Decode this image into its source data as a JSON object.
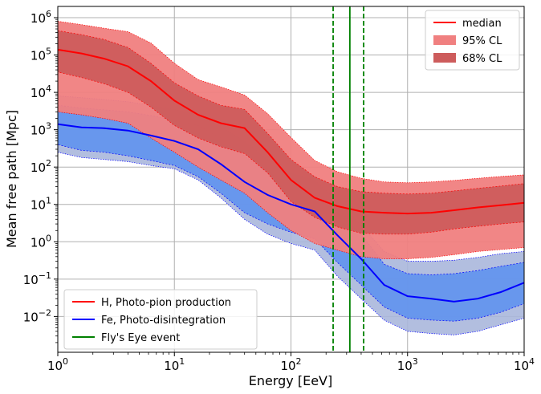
{
  "chart_data": {
    "type": "line",
    "title": "",
    "xlabel": "Energy [EeV]",
    "ylabel": "Mean free path [Mpc]",
    "xscale": "log",
    "yscale": "log",
    "xlim": [
      1,
      10000
    ],
    "ylim": [
      0.0011,
      2000000
    ],
    "grid": true,
    "x_ticks": [
      {
        "value": 1,
        "base": "10",
        "exp": "0"
      },
      {
        "value": 10,
        "base": "10",
        "exp": "1"
      },
      {
        "value": 100,
        "base": "10",
        "exp": "2"
      },
      {
        "value": 1000,
        "base": "10",
        "exp": "3"
      },
      {
        "value": 10000,
        "base": "10",
        "exp": "4"
      }
    ],
    "y_ticks": [
      {
        "value": 0.01,
        "base": "10",
        "exp": "−2"
      },
      {
        "value": 0.1,
        "base": "10",
        "exp": "−1"
      },
      {
        "value": 1,
        "base": "10",
        "exp": "0",
        "plain": "10",
        "plain_sup": "0"
      },
      {
        "value": 10,
        "base": "10",
        "exp": "1"
      },
      {
        "value": 100,
        "base": "10",
        "exp": "2"
      },
      {
        "value": 1000,
        "base": "10",
        "exp": "3"
      },
      {
        "value": 10000,
        "base": "10",
        "exp": "4"
      },
      {
        "value": 100000,
        "base": "10",
        "exp": "5"
      },
      {
        "value": 1000000,
        "base": "10",
        "exp": "6"
      }
    ],
    "x": [
      1,
      1.6,
      2.5,
      4,
      6.3,
      10,
      16,
      25,
      40,
      63,
      100,
      160,
      250,
      400,
      630,
      1000,
      1600,
      2500,
      4000,
      6300,
      10000
    ],
    "series": [
      {
        "name": "H, Photo-pion production",
        "color": "#ff0000",
        "median": [
          140000,
          110000,
          80000,
          50000,
          20000,
          6000,
          2500,
          1500,
          1100,
          250,
          45,
          15,
          9,
          6.5,
          6,
          5.7,
          6,
          7,
          8.3,
          9.5,
          11
        ],
        "ci68_low": [
          35000,
          25000,
          17000,
          10000,
          4000,
          1300,
          600,
          350,
          230,
          70,
          12,
          4.5,
          2.5,
          1.7,
          1.6,
          1.6,
          1.8,
          2.2,
          2.6,
          3,
          3.4
        ],
        "ci68_high": [
          450000,
          350000,
          260000,
          160000,
          60000,
          18000,
          8000,
          4500,
          3500,
          800,
          160,
          55,
          30,
          22,
          20,
          19,
          20,
          23,
          27,
          31,
          36
        ],
        "ci95_low": [
          3000,
          2500,
          2000,
          1500,
          600,
          250,
          100,
          45,
          20,
          6,
          2,
          0.9,
          0.6,
          0.4,
          0.35,
          0.35,
          0.38,
          0.45,
          0.55,
          0.62,
          0.7
        ],
        "ci95_high": [
          800000,
          650000,
          520000,
          420000,
          210000,
          60000,
          22000,
          14000,
          8500,
          2700,
          620,
          150,
          75,
          50,
          40,
          38,
          40,
          44,
          50,
          56,
          62
        ]
      },
      {
        "name": "Fe, Photo-disintegration",
        "color": "#0000ff",
        "median": [
          1400,
          1150,
          1100,
          950,
          700,
          500,
          300,
          120,
          40,
          18,
          10,
          6.5,
          1.5,
          0.35,
          0.07,
          0.035,
          0.03,
          0.025,
          0.03,
          0.045,
          0.08
        ],
        "ci68_low": [
          400,
          280,
          250,
          200,
          150,
          110,
          55,
          20,
          6,
          3,
          1.8,
          1.2,
          0.28,
          0.07,
          0.018,
          0.009,
          0.008,
          0.0075,
          0.009,
          0.013,
          0.022
        ],
        "ci68_high": [
          4500,
          3800,
          3400,
          3000,
          2400,
          1800,
          1300,
          600,
          200,
          70,
          35,
          25,
          6,
          1.6,
          0.25,
          0.14,
          0.13,
          0.14,
          0.17,
          0.22,
          0.28
        ],
        "ci95_low": [
          250,
          180,
          160,
          140,
          110,
          90,
          45,
          15,
          4,
          1.6,
          0.9,
          0.6,
          0.12,
          0.03,
          0.008,
          0.004,
          0.0035,
          0.0032,
          0.004,
          0.006,
          0.009
        ],
        "ci95_high": [
          8000,
          7200,
          6400,
          5600,
          4500,
          3500,
          2500,
          1200,
          500,
          160,
          70,
          45,
          12,
          2.8,
          0.55,
          0.3,
          0.3,
          0.32,
          0.38,
          0.48,
          0.55
        ]
      }
    ],
    "vertical_lines": [
      {
        "name": "Fly's Eye event",
        "x": 320,
        "style": "solid",
        "color": "#008000"
      },
      {
        "name": "Fly's Eye event lower bound",
        "x": 230,
        "style": "dashed",
        "color": "#008000"
      },
      {
        "name": "Fly's Eye event upper bound",
        "x": 420,
        "style": "dashed",
        "color": "#008000"
      }
    ],
    "legend_top_right": {
      "placement": "top-right",
      "entries": [
        {
          "label": "median",
          "kind": "line",
          "color": "#ff0000"
        },
        {
          "label": "95% CL",
          "kind": "patch",
          "color": "#f08080"
        },
        {
          "label": "68% CL",
          "kind": "patch",
          "color": "#cd5c5c"
        }
      ]
    },
    "legend_bottom_left": {
      "placement": "bottom-left",
      "entries": [
        {
          "label": "H, Photo-pion production",
          "kind": "line",
          "color": "#ff0000"
        },
        {
          "label": "Fe, Photo-disintegration",
          "kind": "line",
          "color": "#0000ff"
        },
        {
          "label": "Fly's Eye event",
          "kind": "line",
          "color": "#008000"
        }
      ]
    }
  }
}
